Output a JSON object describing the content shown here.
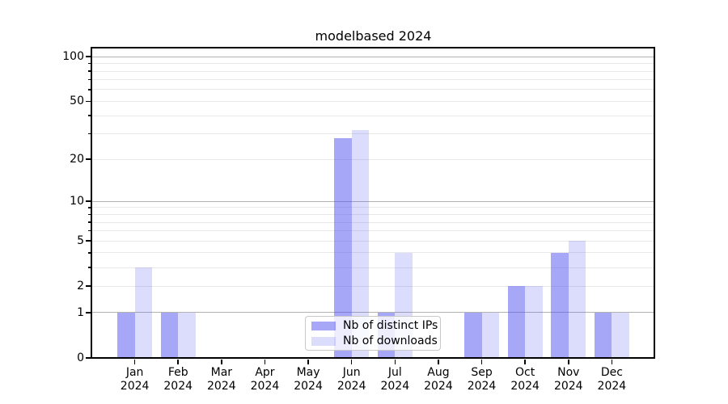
{
  "chart_data": {
    "type": "bar",
    "title": "modelbased 2024",
    "categories": [
      "Jan 2024",
      "Feb 2024",
      "Mar 2024",
      "Apr 2024",
      "May 2024",
      "Jun 2024",
      "Jul 2024",
      "Aug 2024",
      "Sep 2024",
      "Oct 2024",
      "Nov 2024",
      "Dec 2024"
    ],
    "x_tick_line1": [
      "Jan",
      "Feb",
      "Mar",
      "Apr",
      "May",
      "Jun",
      "Jul",
      "Aug",
      "Sep",
      "Oct",
      "Nov",
      "Dec"
    ],
    "x_tick_line2": "2024",
    "series": [
      {
        "name": "Nb of distinct IPs",
        "color": "rgba(80,80,240,0.5)",
        "values": [
          1,
          1,
          0,
          0,
          0,
          28,
          1,
          0,
          1,
          2,
          4,
          1
        ]
      },
      {
        "name": "Nb of downloads",
        "color": "rgba(80,80,240,0.2)",
        "values": [
          3,
          1,
          0,
          0,
          0,
          32,
          4,
          0,
          1,
          2,
          5,
          1
        ]
      }
    ],
    "yscale": "log1p",
    "ylim": [
      0,
      115
    ],
    "yticks": [
      "0",
      "1",
      "2",
      "5",
      "10",
      "20",
      "50",
      "100"
    ],
    "ytick_values": [
      0,
      1,
      2,
      5,
      10,
      20,
      50,
      100
    ],
    "major_gridlines": [
      1,
      10,
      100
    ],
    "minor_gridlines": [
      2,
      3,
      4,
      5,
      6,
      7,
      8,
      9,
      20,
      30,
      40,
      50,
      60,
      70,
      80,
      90
    ],
    "grid": true,
    "legend_position": "inside-bottom-center",
    "colors": {
      "major_grid": "#b2b2b2",
      "minor_grid": "#e8e8e8",
      "spine": "#000000",
      "legend_border": "#c9c9c9",
      "background": "#ffffff"
    }
  }
}
